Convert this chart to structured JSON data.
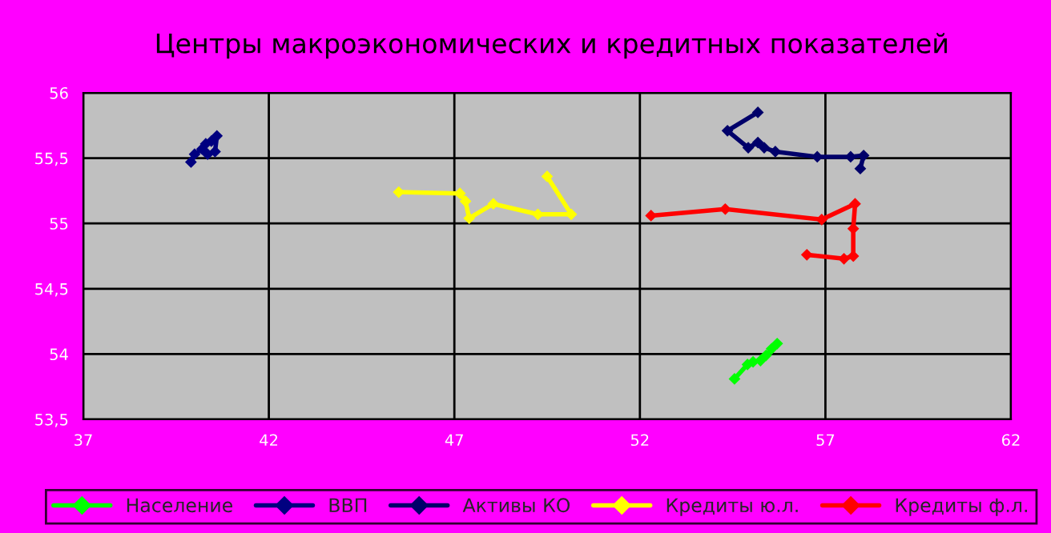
{
  "chart_data": {
    "type": "line",
    "title": "Центры макроэкономических и кредитных показателей",
    "series": [
      {
        "name": "Население",
        "color": "#00ff00",
        "x": [
          54.55,
          54.9,
          55.05,
          55.25,
          55.4,
          55.55,
          55.7
        ],
        "values": [
          53.81,
          53.92,
          53.94,
          53.95,
          53.99,
          54.04,
          54.08
        ]
      },
      {
        "name": "ВВП",
        "color": "#000080",
        "x": [
          39.9,
          40.0,
          40.2,
          40.3,
          40.45,
          40.6,
          40.55,
          40.35
        ],
        "values": [
          55.47,
          55.53,
          55.57,
          55.61,
          55.63,
          55.67,
          55.55,
          55.53
        ]
      },
      {
        "name": "Активы КО",
        "color": "#00006a",
        "x": [
          55.18,
          54.36,
          54.92,
          55.18,
          55.35,
          55.65,
          56.78,
          57.68,
          58.03,
          57.94
        ],
        "values": [
          55.85,
          55.71,
          55.58,
          55.62,
          55.58,
          55.55,
          55.51,
          55.51,
          55.52,
          55.42
        ]
      },
      {
        "name": "Кредиты ю.л.",
        "color": "#ffff00",
        "x": [
          45.5,
          47.15,
          47.3,
          47.4,
          48.05,
          49.25,
          50.15,
          49.5
        ],
        "values": [
          55.24,
          55.23,
          55.17,
          55.04,
          55.15,
          55.07,
          55.07,
          55.36
        ]
      },
      {
        "name": "Кредиты ф.л.",
        "color": "#ff0000",
        "x": [
          52.3,
          54.3,
          56.9,
          57.8,
          57.75,
          57.75,
          57.5,
          56.5
        ],
        "values": [
          55.06,
          55.11,
          55.03,
          55.15,
          54.96,
          54.75,
          54.73,
          54.76
        ]
      }
    ],
    "xlim": [
      37,
      62
    ],
    "xticks": [
      37,
      42,
      47,
      52,
      57,
      62
    ],
    "ylim": [
      53.5,
      56
    ],
    "yticks": [
      {
        "value": 53.5,
        "label": "53,5"
      },
      54,
      {
        "value": 54.5,
        "label": "54,5"
      },
      55,
      {
        "value": 55.5,
        "label": "55,5"
      },
      56
    ],
    "grid": true,
    "legend": "bottom",
    "marker": "diamond",
    "line_style": "solid"
  }
}
